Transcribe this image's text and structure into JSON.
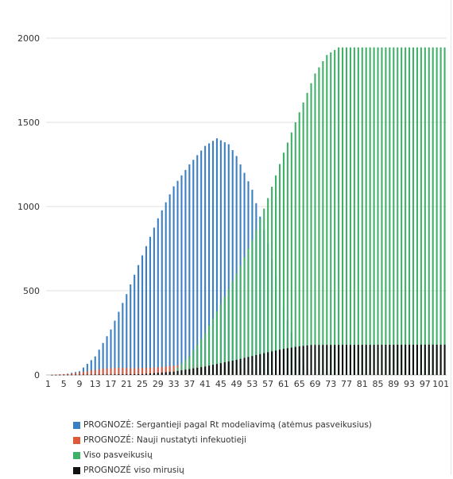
{
  "chart_data": {
    "type": "bar",
    "x_start": 1,
    "x_end": 102,
    "x_tick_labels": [
      "1",
      "5",
      "9",
      "13",
      "17",
      "21",
      "25",
      "29",
      "33",
      "37",
      "41",
      "45",
      "49",
      "53",
      "57",
      "61",
      "65",
      "69",
      "73",
      "77",
      "81",
      "85",
      "89",
      "93",
      "97",
      "101"
    ],
    "y_tick_labels": [
      "0",
      "500",
      "1000",
      "1500",
      "2000"
    ],
    "ylim": [
      0,
      2000
    ],
    "grid": true,
    "legend_position": "bottom",
    "series": [
      {
        "name": "PROGNOZĖ: Sergantieji pagal Rt modeliavimą (atėmus pasveikusius)",
        "color": "#3a7fc4",
        "keypoints": [
          [
            1,
            0
          ],
          [
            5,
            3
          ],
          [
            9,
            22
          ],
          [
            13,
            110
          ],
          [
            17,
            270
          ],
          [
            21,
            480
          ],
          [
            25,
            710
          ],
          [
            29,
            930
          ],
          [
            33,
            1120
          ],
          [
            37,
            1250
          ],
          [
            41,
            1360
          ],
          [
            44,
            1405
          ],
          [
            47,
            1370
          ],
          [
            49,
            1300
          ],
          [
            53,
            1100
          ],
          [
            57,
            780
          ],
          [
            61,
            400
          ],
          [
            65,
            100
          ],
          [
            68,
            5
          ],
          [
            69,
            0
          ]
        ]
      },
      {
        "name": "PROGNOZĖ: Nauji nustatyti infekuotieji",
        "color": "#e05a3a",
        "keypoints": [
          [
            1,
            0
          ],
          [
            7,
            8
          ],
          [
            11,
            22
          ],
          [
            15,
            38
          ],
          [
            19,
            42
          ],
          [
            23,
            40
          ],
          [
            29,
            45
          ],
          [
            33,
            55
          ],
          [
            37,
            60
          ],
          [
            40,
            62
          ],
          [
            45,
            60
          ],
          [
            49,
            40
          ],
          [
            53,
            25
          ],
          [
            57,
            15
          ],
          [
            63,
            5
          ],
          [
            68,
            0
          ]
        ]
      },
      {
        "name": "Viso pasveikusių",
        "color": "#3fb068",
        "keypoints": [
          [
            1,
            0
          ],
          [
            30,
            0
          ],
          [
            33,
            20
          ],
          [
            37,
            110
          ],
          [
            41,
            250
          ],
          [
            45,
            420
          ],
          [
            49,
            600
          ],
          [
            53,
            800
          ],
          [
            57,
            1050
          ],
          [
            61,
            1320
          ],
          [
            65,
            1560
          ],
          [
            69,
            1790
          ],
          [
            72,
            1900
          ],
          [
            75,
            1945
          ],
          [
            102,
            1945
          ]
        ]
      },
      {
        "name": "PROGNOZĖ viso mirusių",
        "color": "#111111",
        "keypoints": [
          [
            1,
            0
          ],
          [
            25,
            5
          ],
          [
            33,
            20
          ],
          [
            41,
            50
          ],
          [
            49,
            90
          ],
          [
            57,
            135
          ],
          [
            61,
            155
          ],
          [
            65,
            170
          ],
          [
            68,
            178
          ],
          [
            102,
            180
          ]
        ]
      }
    ]
  }
}
